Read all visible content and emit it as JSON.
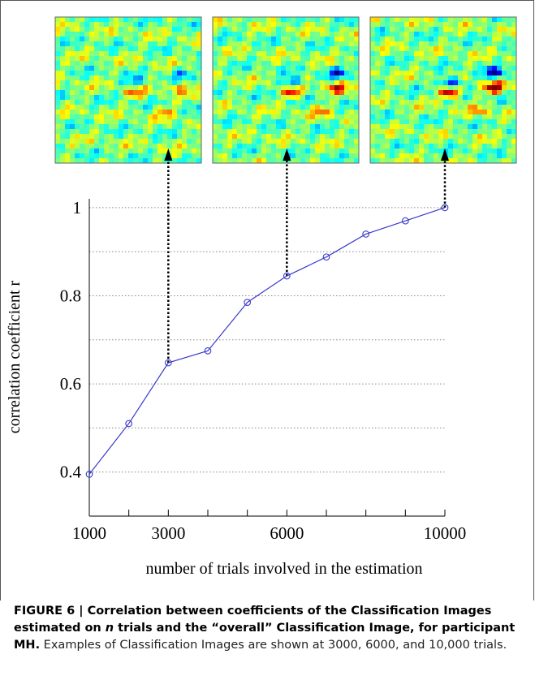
{
  "chart_data": {
    "type": "line",
    "x_label": "number of trials involved in the estimation",
    "y_label": "correlation coefficient r",
    "x": [
      1000,
      2000,
      3000,
      4000,
      5000,
      6000,
      7000,
      8000,
      9000,
      10000
    ],
    "series": [
      {
        "color": "#3a3acc",
        "values": [
          0.395,
          0.51,
          0.648,
          0.675,
          0.785,
          0.845,
          0.888,
          0.94,
          0.97,
          1.0
        ]
      }
    ],
    "xlim": [
      1000,
      10000
    ],
    "ylim": [
      0.3,
      1.02
    ],
    "xticks": [
      1000,
      3000,
      6000,
      10000
    ],
    "minor_xticks": [
      2000,
      4000,
      5000,
      7000,
      8000,
      9000
    ],
    "yticks": [
      0.4,
      0.6,
      0.8,
      1
    ],
    "minor_yticks": [
      0.5,
      0.7,
      0.9
    ],
    "grid": true,
    "example_x": [
      3000,
      6000,
      10000
    ]
  },
  "caption": {
    "bold_1": "FIGURE 6 | Correlation between coefficients of the Classification Images estimated on ",
    "bold_italic": "n",
    "bold_2": " trials and the “overall” Classification Image, for participant MH.",
    "text": " Examples of Classification Images are shown at 3000, 6000, and 10,000 trials."
  }
}
